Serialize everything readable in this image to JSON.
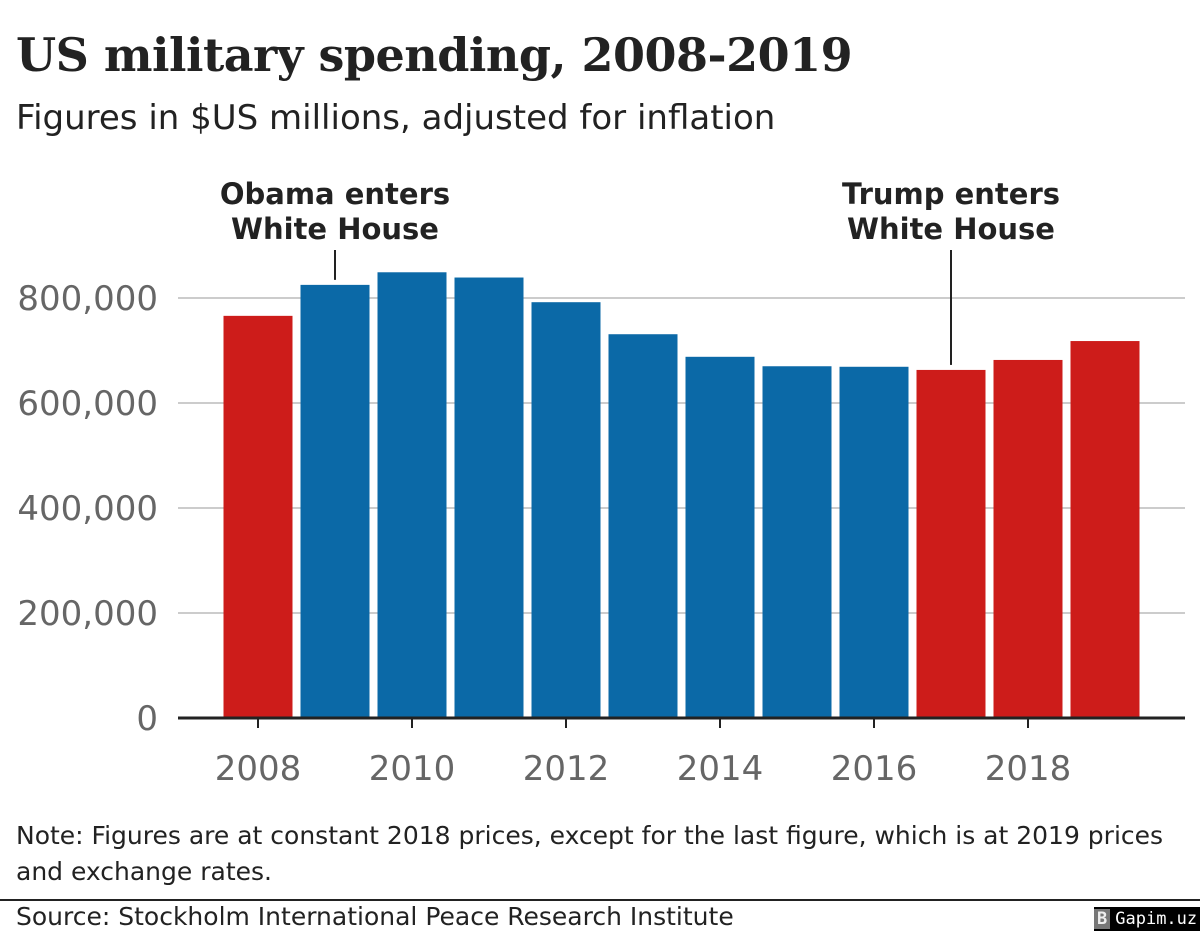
{
  "title": "US military spending, 2008-2019",
  "subtitle": "Figures in $US millions, adjusted for inflation",
  "note": "Note: Figures are at constant 2018 prices, except for the last figure, which is at 2019 prices and exchange rates.",
  "source": "Source: Stockholm International Peace Research Institute",
  "watermark": "Gapim.uz",
  "chart_data": {
    "type": "bar",
    "categories": [
      "2008",
      "2009",
      "2010",
      "2011",
      "2012",
      "2013",
      "2014",
      "2015",
      "2016",
      "2017",
      "2018",
      "2019"
    ],
    "values": [
      766000,
      825000,
      849000,
      839000,
      792000,
      731000,
      688000,
      670000,
      669000,
      663000,
      682000,
      718000
    ],
    "bar_colors": [
      "#cd1c1a",
      "#0b69a7",
      "#0b69a7",
      "#0b69a7",
      "#0b69a7",
      "#0b69a7",
      "#0b69a7",
      "#0b69a7",
      "#0b69a7",
      "#cd1c1a",
      "#cd1c1a",
      "#cd1c1a"
    ],
    "colors": {
      "democrat": "#0b69a7",
      "republican": "#cd1c1a"
    },
    "ylim": [
      0,
      800000
    ],
    "yticks": [
      0,
      200000,
      400000,
      600000,
      800000
    ],
    "ytick_labels": [
      "0",
      "200,000",
      "400,000",
      "600,000",
      "800,000"
    ],
    "xtick_labels": [
      "2008",
      "2010",
      "2012",
      "2014",
      "2016",
      "2018"
    ],
    "grid": true,
    "annotations": [
      {
        "category": "2009",
        "lines": [
          "Obama enters",
          "White House"
        ]
      },
      {
        "category": "2017",
        "lines": [
          "Trump enters",
          "White House"
        ]
      }
    ]
  }
}
